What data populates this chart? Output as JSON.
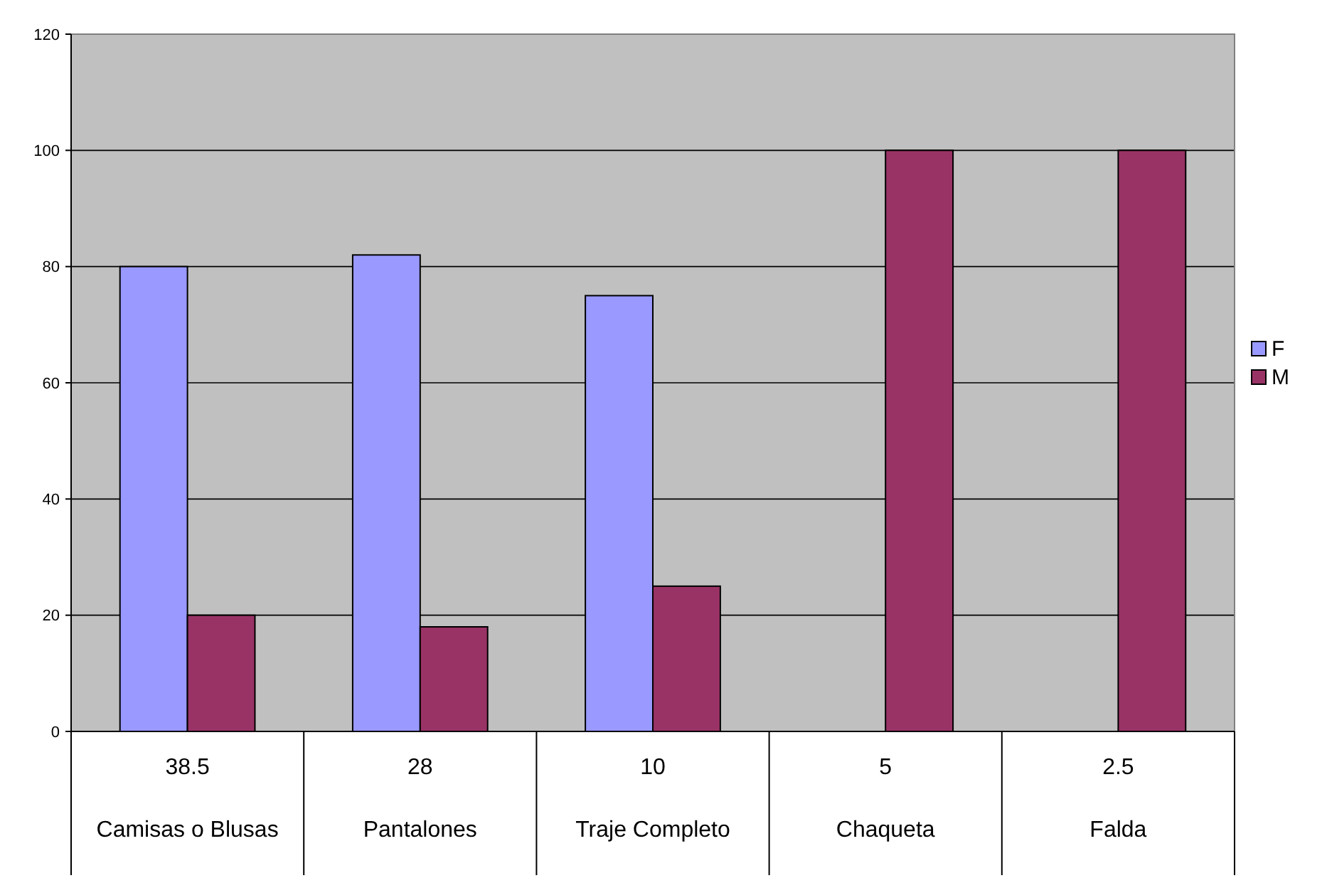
{
  "chart_data": {
    "type": "bar",
    "categories": [
      "38.5\nCamisas o Blusas",
      "28\nPantalones",
      "10\nTraje Completo",
      "5\nChaqueta",
      "2.5\nFalda"
    ],
    "series": [
      {
        "name": "F",
        "color": "#9999ff",
        "values": [
          80,
          82,
          75,
          null,
          null
        ]
      },
      {
        "name": "M",
        "color": "#993366",
        "values": [
          20,
          18,
          25,
          100,
          100
        ]
      }
    ],
    "ylim": [
      0,
      120
    ],
    "yticks": [
      0,
      20,
      40,
      60,
      80,
      100,
      120
    ],
    "grid": "y",
    "legend": "right"
  }
}
